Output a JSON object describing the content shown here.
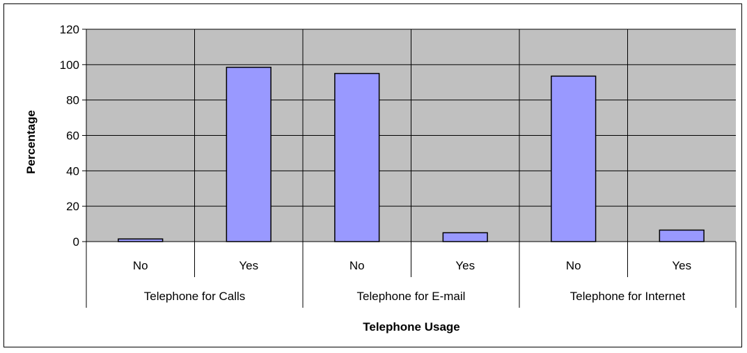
{
  "chart_data": {
    "type": "bar",
    "title": "",
    "xlabel": "Telephone Usage",
    "ylabel": "Percentage",
    "ylim": [
      0,
      120
    ],
    "yticks": [
      0,
      20,
      40,
      60,
      80,
      100,
      120
    ],
    "grid": true,
    "legend": "none",
    "categories": [
      "No",
      "Yes",
      "No",
      "Yes",
      "No",
      "Yes"
    ],
    "groups": [
      "Telephone for Calls",
      "Telephone for E-mail",
      "Telephone for Internet"
    ],
    "group_size": 2,
    "values": [
      1.5,
      98.5,
      95,
      5,
      93.5,
      6.5
    ],
    "colors": {
      "plot_background": "#c0c0c0",
      "bar_fill": "#9999ff",
      "bar_stroke": "#000000",
      "gridline": "#000000"
    }
  }
}
